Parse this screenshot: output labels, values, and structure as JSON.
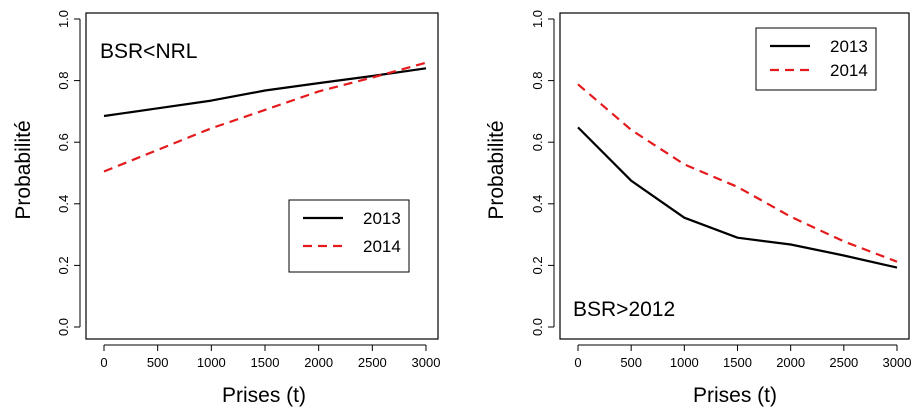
{
  "chart_data": [
    {
      "type": "line",
      "title": "",
      "annotation": "BSR<NRL",
      "xlabel": "Prises (t)",
      "ylabel": "Probabilité",
      "xlim": [
        0,
        3000
      ],
      "ylim": [
        0.0,
        1.0
      ],
      "x_ticks": [
        "0",
        "500",
        "1000",
        "1500",
        "2000",
        "2500",
        "3000"
      ],
      "y_ticks": [
        "0.0",
        "0.2",
        "0.4",
        "0.6",
        "0.8",
        "1.0"
      ],
      "legend_position": "bottom-right",
      "series": [
        {
          "name": "2013",
          "color": "#000000",
          "dash": "solid",
          "x": [
            0,
            500,
            1000,
            1500,
            2000,
            2500,
            3000
          ],
          "y": [
            0.685,
            0.71,
            0.735,
            0.768,
            0.792,
            0.815,
            0.84
          ]
        },
        {
          "name": "2014",
          "color": "#e41a1c",
          "dash": "dashed",
          "x": [
            0,
            500,
            1000,
            1500,
            2000,
            2500,
            3000
          ],
          "y": [
            0.505,
            0.575,
            0.645,
            0.705,
            0.765,
            0.81,
            0.858
          ]
        }
      ]
    },
    {
      "type": "line",
      "title": "",
      "annotation": "BSR>2012",
      "xlabel": "Prises (t)",
      "ylabel": "Probabilité",
      "xlim": [
        0,
        3000
      ],
      "ylim": [
        0.0,
        1.0
      ],
      "x_ticks": [
        "0",
        "500",
        "1000",
        "1500",
        "2000",
        "2500",
        "3000"
      ],
      "y_ticks": [
        "0.0",
        "0.2",
        "0.4",
        "0.6",
        "0.8",
        "1.0"
      ],
      "legend_position": "top-right",
      "series": [
        {
          "name": "2013",
          "color": "#000000",
          "dash": "solid",
          "x": [
            0,
            500,
            1000,
            1500,
            2000,
            2500,
            3000
          ],
          "y": [
            0.648,
            0.475,
            0.355,
            0.29,
            0.268,
            0.232,
            0.193
          ]
        },
        {
          "name": "2014",
          "color": "#e41a1c",
          "dash": "dashed",
          "x": [
            0,
            500,
            1000,
            1500,
            2000,
            2500,
            3000
          ],
          "y": [
            0.788,
            0.64,
            0.528,
            0.455,
            0.358,
            0.278,
            0.212
          ]
        }
      ]
    }
  ]
}
